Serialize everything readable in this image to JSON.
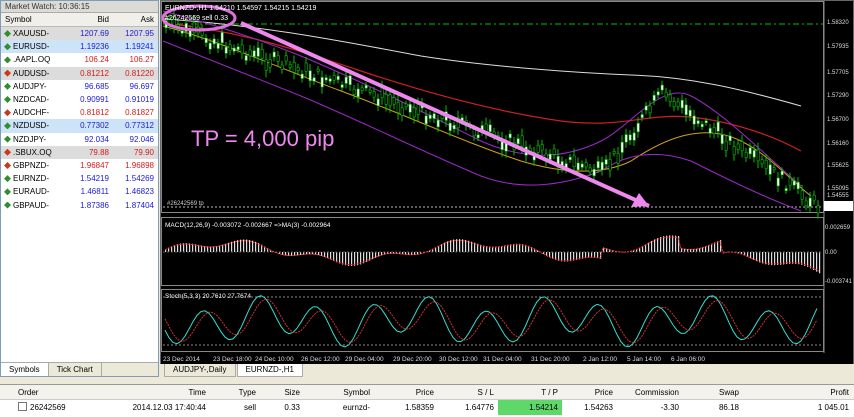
{
  "market_watch": {
    "title": "Market Watch: 10:36:15",
    "columns": {
      "symbol": "Symbol",
      "bid": "Bid",
      "ask": "Ask"
    },
    "rows": [
      {
        "symbol": "XAUUSD-",
        "bid": "1207.69",
        "ask": "1207.95",
        "dir": "up",
        "color": "blue",
        "hl": "gray"
      },
      {
        "symbol": "EURUSD-",
        "bid": "1.19236",
        "ask": "1.19241",
        "dir": "up",
        "color": "blue",
        "hl": "blue"
      },
      {
        "symbol": ".AAPL.OQ",
        "bid": "106.24",
        "ask": "106.27",
        "dir": "up",
        "color": "red",
        "hl": ""
      },
      {
        "symbol": "AUDUSD-",
        "bid": "0.81212",
        "ask": "0.81220",
        "dir": "down",
        "color": "red",
        "hl": "gray"
      },
      {
        "symbol": "AUDJPY-",
        "bid": "96.685",
        "ask": "96.697",
        "dir": "up",
        "color": "blue",
        "hl": ""
      },
      {
        "symbol": "NZDCAD-",
        "bid": "0.90991",
        "ask": "0.91019",
        "dir": "up",
        "color": "blue",
        "hl": ""
      },
      {
        "symbol": "AUDCHF-",
        "bid": "0.81812",
        "ask": "0.81827",
        "dir": "down",
        "color": "red",
        "hl": ""
      },
      {
        "symbol": "NZDUSD-",
        "bid": "0.77302",
        "ask": "0.77312",
        "dir": "up",
        "color": "blue",
        "hl": "blue"
      },
      {
        "symbol": "NZDJPY-",
        "bid": "92.034",
        "ask": "92.046",
        "dir": "up",
        "color": "blue",
        "hl": ""
      },
      {
        "symbol": ".SBUX.OQ",
        "bid": "79.88",
        "ask": "79.90",
        "dir": "down",
        "color": "red",
        "hl": "gray"
      },
      {
        "symbol": "GBPNZD-",
        "bid": "1.96847",
        "ask": "1.96898",
        "dir": "down",
        "color": "red",
        "hl": ""
      },
      {
        "symbol": "EURNZD-",
        "bid": "1.54219",
        "ask": "1.54269",
        "dir": "up",
        "color": "blue",
        "hl": ""
      },
      {
        "symbol": "EURAUD-",
        "bid": "1.46811",
        "ask": "1.46823",
        "dir": "up",
        "color": "blue",
        "hl": ""
      },
      {
        "symbol": "GBPAUD-",
        "bid": "1.87386",
        "ask": "1.87404",
        "dir": "up",
        "color": "blue",
        "hl": ""
      }
    ],
    "tabs": [
      "Symbols",
      "Tick Chart"
    ]
  },
  "chart": {
    "header": "EURNZD-,H1  1.54210 1.54597 1.54215 1.54219",
    "order_note": "#26242569 sell 0.33",
    "tp_line_label": "#26242569 tp",
    "annotation": "TP = 4,000 pip",
    "macd_label": "MACD(12,26,9) -0.003072 -0.002667 =>MA(3) -0.002964",
    "stoch_label": "Stoch(5,3,3) 20.7610 27.7674",
    "price_ticks": [
      "1.58320",
      "1.57935",
      "1.57705",
      "1.57290",
      "1.56700",
      "1.56160",
      "1.55625",
      "1.55095",
      "1.54555",
      "1.54219"
    ],
    "macd_ticks": [
      "0.002659",
      "0.00",
      "-0.003741"
    ],
    "time_ticks": [
      "23 Dec 2014",
      "23 Dec 18:00",
      "24 Dec 10:00",
      "26 Dec 12:00",
      "29 Dec 04:00",
      "29 Dec 20:00",
      "30 Dec 12:00",
      "31 Dec 04:00",
      "31 Dec 20:00",
      "2 Jan 12:00",
      "5 Jan 14:00",
      "6 Jan 06:00"
    ],
    "tabs": [
      "AUDJPY-,Daily",
      "EURNZD-,H1"
    ],
    "colors": {
      "annotation": "#ee88ee",
      "highlight_ring": "#e070e0",
      "grid_line": "#00c000"
    }
  },
  "orders": {
    "columns": [
      "Order",
      "Time",
      "Type",
      "Size",
      "Symbol",
      "Price",
      "S / L",
      "T / P",
      "Price",
      "Commission",
      "Swap",
      "Profit"
    ],
    "row": {
      "order": "26242569",
      "time": "2014.12.03 17:40:44",
      "type": "sell",
      "size": "0.33",
      "symbol": "eurnzd-",
      "price": "1.58359",
      "sl": "1.64776",
      "tp": "1.54214",
      "current_price": "1.54263",
      "commission": "-3.30",
      "swap": "86.18",
      "profit": "1 045.01"
    }
  }
}
